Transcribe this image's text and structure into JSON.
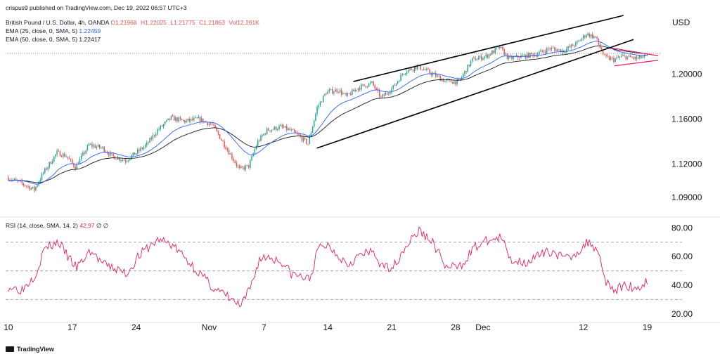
{
  "header": {
    "publisher_line": "crispus9 published on TradingView.com, Dec 19, 2022 06:57 UTC+3",
    "symbol": "British Pound / U.S. Dollar, 4h, OANDA",
    "ohlc": {
      "open": "O1.21968",
      "high": "H1.22025",
      "low": "L1.21775",
      "close": "C1.21863",
      "vol": "Vol12.261K"
    },
    "ema25_label": "EMA (25, close, 0, SMA, 5)",
    "ema25_value": "1.22459",
    "ema50_label": "EMA (50, close, 0, SMA, 5)",
    "ema50_value": "1.22417"
  },
  "currency": "USD",
  "rsi_header": {
    "label": "RSI (14, close, SMA, 14, 2)",
    "value": "42.97",
    "extra": "∅ ∅"
  },
  "branding": "TradingView",
  "colors": {
    "up": "#26a69a",
    "down": "#ef5350",
    "ema25": "#2962ff",
    "ema50": "#131722",
    "rsi": "#e91e63",
    "trendline": "#000000"
  },
  "chart_data": [
    {
      "type": "candlestick",
      "title": "British Pound / U.S. Dollar, 4h, OANDA",
      "y_ticks": [
        "1.20000",
        "1.16000",
        "1.12000",
        "1.09000"
      ],
      "y_tick_values": [
        1.2,
        1.16,
        1.12,
        1.09
      ],
      "ylim": [
        1.075,
        1.255
      ],
      "x_ticks": [
        "10",
        "17",
        "24",
        "Nov",
        "7",
        "14",
        "21",
        "28",
        "Dec",
        "12",
        "19"
      ],
      "x_tick_days": [
        0,
        7,
        14,
        22,
        28,
        35,
        42,
        49,
        52,
        63,
        70
      ],
      "days_span": [
        -0.3,
        71.5
      ],
      "price_path": [
        [
          0,
          1.108
        ],
        [
          1.5,
          1.103
        ],
        [
          3,
          1.097
        ],
        [
          4,
          1.112
        ],
        [
          5.5,
          1.13
        ],
        [
          6.5,
          1.127
        ],
        [
          7.5,
          1.117
        ],
        [
          9,
          1.137
        ],
        [
          10.5,
          1.134
        ],
        [
          11.5,
          1.127
        ],
        [
          13,
          1.123
        ],
        [
          14.2,
          1.13
        ],
        [
          15.3,
          1.137
        ],
        [
          16.5,
          1.15
        ],
        [
          18,
          1.161
        ],
        [
          19.5,
          1.158
        ],
        [
          21,
          1.16
        ],
        [
          22.5,
          1.155
        ],
        [
          24,
          1.135
        ],
        [
          25.5,
          1.115
        ],
        [
          26.5,
          1.118
        ],
        [
          27.5,
          1.14
        ],
        [
          28.5,
          1.15
        ],
        [
          30,
          1.153
        ],
        [
          31,
          1.15
        ],
        [
          32,
          1.145
        ],
        [
          33,
          1.138
        ],
        [
          34,
          1.17
        ],
        [
          35,
          1.184
        ],
        [
          36.3,
          1.186
        ],
        [
          37.2,
          1.18
        ],
        [
          38.5,
          1.188
        ],
        [
          40,
          1.192
        ],
        [
          41,
          1.179
        ],
        [
          42.3,
          1.188
        ],
        [
          43.5,
          1.202
        ],
        [
          45,
          1.207
        ],
        [
          46.5,
          1.201
        ],
        [
          48,
          1.194
        ],
        [
          49.5,
          1.193
        ],
        [
          51,
          1.213
        ],
        [
          52.5,
          1.216
        ],
        [
          54,
          1.224
        ],
        [
          55,
          1.214
        ],
        [
          56.5,
          1.216
        ],
        [
          58,
          1.218
        ],
        [
          59.5,
          1.223
        ],
        [
          61,
          1.221
        ],
        [
          62.5,
          1.228
        ],
        [
          63.5,
          1.236
        ],
        [
          64.5,
          1.233
        ],
        [
          65.5,
          1.215
        ],
        [
          66.5,
          1.213
        ],
        [
          67.5,
          1.216
        ],
        [
          69,
          1.214
        ],
        [
          70,
          1.216
        ]
      ],
      "trendlines": [
        {
          "name": "channel-upper",
          "from": [
            37.8,
            1.1935
          ],
          "to": [
            67.4,
            1.2525
          ]
        },
        {
          "name": "channel-lower",
          "from": [
            33.8,
            1.134
          ],
          "to": [
            68.5,
            1.231
          ]
        },
        {
          "name": "pennant-upper",
          "from": [
            66.1,
            1.2235
          ],
          "to": [
            71.2,
            1.2165
          ]
        },
        {
          "name": "pennant-lower",
          "from": [
            66.4,
            1.2075
          ],
          "to": [
            71.2,
            1.2125
          ]
        }
      ],
      "dotted_price_line": 1.2186
    },
    {
      "type": "line",
      "title": "RSI (14, close, SMA, 14, 2)",
      "y_ticks": [
        "80.00",
        "60.00",
        "40.00",
        "20.00"
      ],
      "y_tick_values": [
        80,
        60,
        40,
        20
      ],
      "ylim": [
        16,
        86
      ],
      "bands": [
        70,
        50,
        30
      ],
      "rsi_path": [
        [
          0,
          39
        ],
        [
          1.5,
          37
        ],
        [
          3,
          48
        ],
        [
          4,
          66
        ],
        [
          5.5,
          70
        ],
        [
          6.5,
          60
        ],
        [
          7.5,
          52
        ],
        [
          9,
          64
        ],
        [
          10.5,
          54
        ],
        [
          11.5,
          52
        ],
        [
          13,
          48
        ],
        [
          14.2,
          60
        ],
        [
          15.3,
          66
        ],
        [
          16.5,
          72
        ],
        [
          18,
          68
        ],
        [
          19.5,
          58
        ],
        [
          21,
          48
        ],
        [
          22.5,
          38
        ],
        [
          24,
          32
        ],
        [
          25.5,
          25
        ],
        [
          26.5,
          38
        ],
        [
          27.5,
          58
        ],
        [
          28.5,
          60
        ],
        [
          30,
          56
        ],
        [
          31,
          48
        ],
        [
          32,
          46
        ],
        [
          33,
          44
        ],
        [
          34,
          66
        ],
        [
          35,
          68
        ],
        [
          36.3,
          60
        ],
        [
          37.2,
          55
        ],
        [
          38.5,
          61
        ],
        [
          40,
          63
        ],
        [
          41,
          52
        ],
        [
          42.3,
          54
        ],
        [
          43.5,
          67
        ],
        [
          45,
          78
        ],
        [
          46.5,
          70
        ],
        [
          48,
          52
        ],
        [
          49.5,
          53
        ],
        [
          51,
          66
        ],
        [
          52.5,
          71
        ],
        [
          54,
          73
        ],
        [
          55,
          58
        ],
        [
          56.5,
          56
        ],
        [
          58,
          60
        ],
        [
          59.5,
          64
        ],
        [
          61,
          58
        ],
        [
          62.5,
          64
        ],
        [
          63.5,
          70
        ],
        [
          64.5,
          66
        ],
        [
          65.5,
          43
        ],
        [
          66.5,
          36
        ],
        [
          67.5,
          40
        ],
        [
          69,
          38
        ],
        [
          70,
          43
        ]
      ]
    }
  ]
}
